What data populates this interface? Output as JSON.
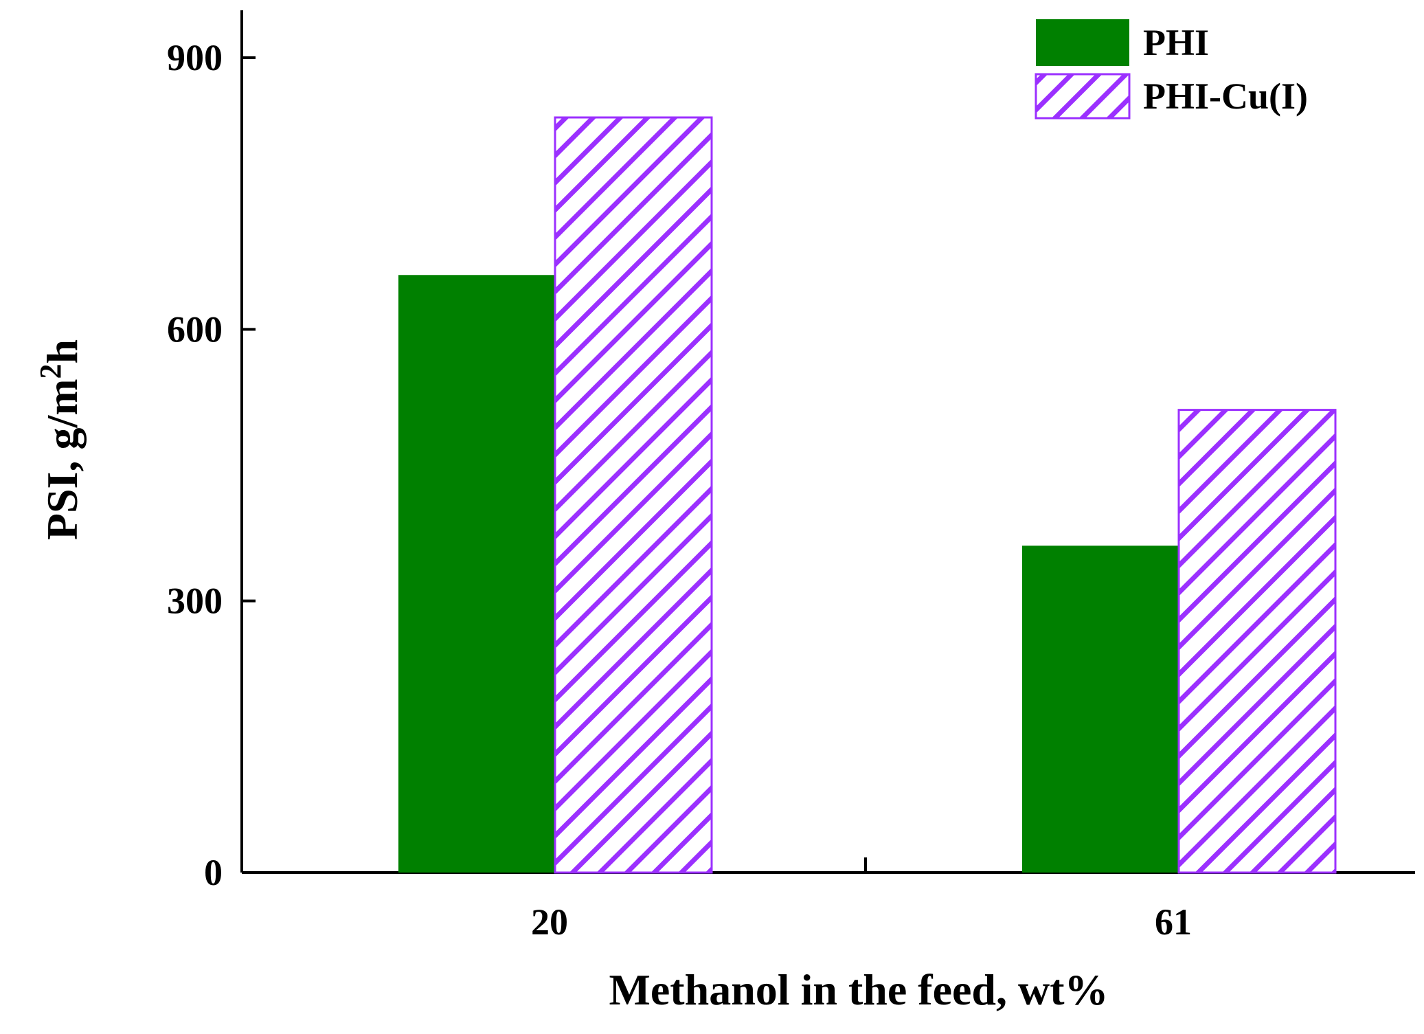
{
  "chart_data": {
    "type": "bar",
    "categories": [
      "20",
      "61"
    ],
    "series": [
      {
        "name": "PHI",
        "values": [
          660,
          361
        ],
        "color": "#008000",
        "pattern": "solid"
      },
      {
        "name": "PHI-Cu(I)",
        "values": [
          834,
          511
        ],
        "color": "#9b30ff",
        "pattern": "hatched"
      }
    ],
    "xlabel": "Methanol in the feed, wt%",
    "ylabel": {
      "main": "PSI, g/m",
      "superscript": "2",
      "suffix": "h"
    },
    "yticks": [
      "0",
      "300",
      "600",
      "900"
    ],
    "ylim": [
      0,
      900
    ],
    "legend_position": "top-right"
  }
}
